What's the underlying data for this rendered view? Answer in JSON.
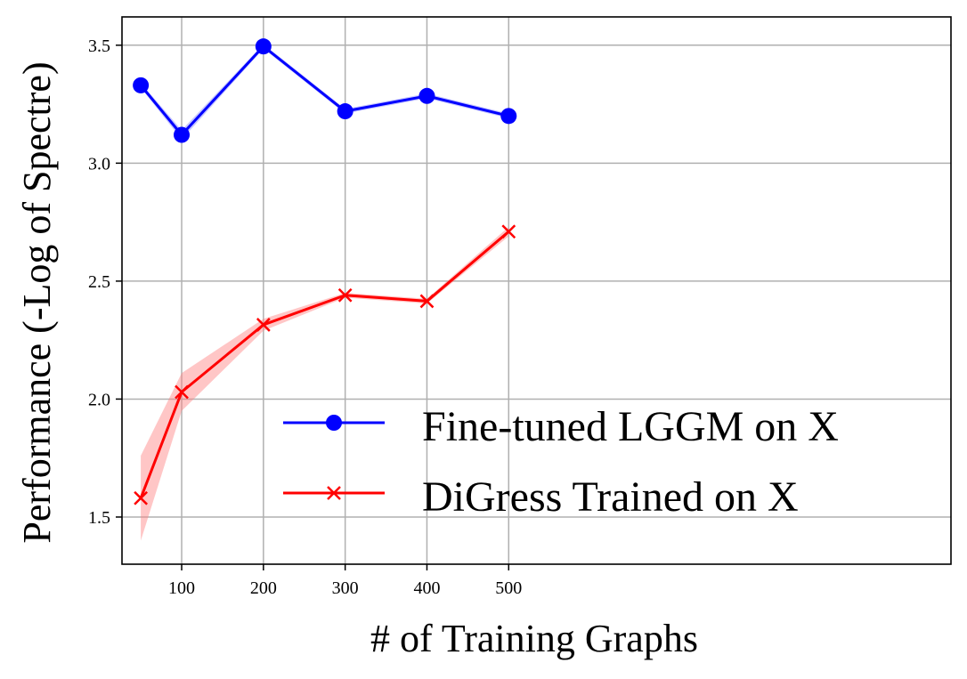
{
  "chart_data": {
    "type": "line",
    "xlabel": "# of Training Graphs",
    "ylabel": "Performance (-Log of Spectre)",
    "xlim": [
      27,
      1041
    ],
    "ylim": [
      1.3,
      3.62
    ],
    "x_scale_note": "",
    "xticks": [
      100,
      200,
      300,
      400,
      500
    ],
    "yticks": [
      1.5,
      2.0,
      2.5,
      3.0,
      3.5
    ],
    "xtick_labels": [
      "100",
      "200",
      "300",
      "400",
      "500"
    ],
    "ytick_labels": [
      "1.5",
      "2.0",
      "2.5",
      "3.0",
      "3.5"
    ],
    "grid": true,
    "legend_position": "lower-right",
    "series": [
      {
        "name": "Fine-tuned LGGM on X",
        "color": "#0000ff",
        "band_color": "#8080ff",
        "marker": "circle",
        "x": [
          50,
          100,
          200,
          300,
          400,
          500
        ],
        "values": [
          3.33,
          3.12,
          3.495,
          3.22,
          3.285,
          3.2
        ],
        "lower": [
          3.32,
          3.1,
          3.485,
          3.21,
          3.275,
          3.19
        ],
        "upper": [
          3.34,
          3.14,
          3.505,
          3.23,
          3.295,
          3.21
        ]
      },
      {
        "name": "DiGress Trained on X",
        "color": "#ff0000",
        "band_color": "#ff8080",
        "marker": "x",
        "x": [
          50,
          100,
          200,
          300,
          400,
          500
        ],
        "values": [
          1.58,
          2.03,
          2.315,
          2.44,
          2.415,
          2.71
        ],
        "lower": [
          1.4,
          1.95,
          2.29,
          2.43,
          2.405,
          2.69
        ],
        "upper": [
          1.76,
          2.11,
          2.34,
          2.45,
          2.425,
          2.73
        ]
      }
    ]
  }
}
